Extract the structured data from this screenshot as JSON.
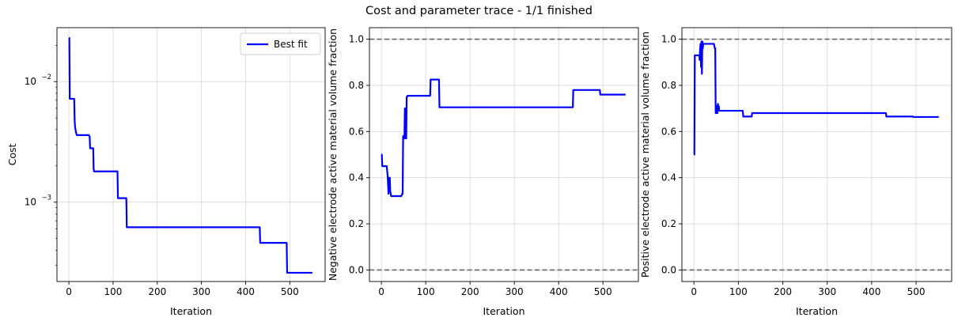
{
  "suptitle": "Cost and parameter trace - 1/1 finished",
  "chart_data": [
    {
      "type": "line",
      "xlabel": "Iteration",
      "ylabel": "Cost",
      "yscale": "log",
      "xlim": [
        -27,
        580
      ],
      "ylim": [
        0.00022,
        0.028
      ],
      "xticks": [
        0,
        100,
        200,
        300,
        400,
        500
      ],
      "yticks": [
        {
          "value": 0.001,
          "label": "10",
          "exp": "−3"
        },
        {
          "value": 0.01,
          "label": "10",
          "exp": "−2"
        }
      ],
      "grid": true,
      "legend": "top-right",
      "series": [
        {
          "name": "Best fit",
          "color": "#0000ff",
          "x": [
            0,
            1,
            2,
            12,
            13,
            14,
            15,
            16,
            18,
            20,
            22,
            45,
            47,
            48,
            55,
            56,
            57,
            58,
            110,
            111,
            130,
            131,
            432,
            433,
            493,
            494,
            551
          ],
          "y": [
            0.023,
            0.023,
            0.0072,
            0.0072,
            0.0048,
            0.0042,
            0.004,
            0.0038,
            0.0036,
            0.0036,
            0.0036,
            0.0036,
            0.0035,
            0.0028,
            0.0028,
            0.0019,
            0.0018,
            0.0018,
            0.0018,
            0.00108,
            0.00108,
            0.00062,
            0.00062,
            0.00046,
            0.00046,
            0.00026,
            0.00026
          ]
        }
      ]
    },
    {
      "type": "line",
      "xlabel": "Iteration",
      "ylabel": "Negative electrode active material volume fraction",
      "xlim": [
        -27,
        580
      ],
      "ylim": [
        -0.05,
        1.05
      ],
      "xticks": [
        0,
        100,
        200,
        300,
        400,
        500
      ],
      "yticks": [
        0.0,
        0.2,
        0.4,
        0.6,
        0.8,
        1.0
      ],
      "ytick_labels": [
        "0.0",
        "0.2",
        "0.4",
        "0.6",
        "0.8",
        "1.0"
      ],
      "grid": true,
      "hlines": [
        0,
        1
      ],
      "hline_color": "#666666",
      "series": [
        {
          "color": "#0000ff",
          "x": [
            0,
            1,
            2,
            12,
            13,
            14,
            16,
            17,
            18,
            19,
            20,
            21,
            22,
            23,
            45,
            47,
            48,
            49,
            51,
            52,
            53,
            54,
            55,
            56,
            57,
            58,
            59,
            110,
            111,
            130,
            131,
            432,
            433,
            493,
            494,
            551
          ],
          "y": [
            0.5,
            0.5,
            0.45,
            0.45,
            0.43,
            0.41,
            0.33,
            0.4,
            0.36,
            0.4,
            0.34,
            0.33,
            0.32,
            0.32,
            0.32,
            0.33,
            0.33,
            0.58,
            0.58,
            0.57,
            0.7,
            0.57,
            0.7,
            0.57,
            0.75,
            0.75,
            0.755,
            0.755,
            0.825,
            0.825,
            0.705,
            0.705,
            0.78,
            0.78,
            0.76,
            0.76
          ]
        }
      ]
    },
    {
      "type": "line",
      "xlabel": "Iteration",
      "ylabel": "Positive electrode active material volume fraction",
      "xlim": [
        -27,
        580
      ],
      "ylim": [
        -0.05,
        1.05
      ],
      "xticks": [
        0,
        100,
        200,
        300,
        400,
        500
      ],
      "yticks": [
        0.0,
        0.2,
        0.4,
        0.6,
        0.8,
        1.0
      ],
      "ytick_labels": [
        "0.0",
        "0.2",
        "0.4",
        "0.6",
        "0.8",
        "1.0"
      ],
      "grid": true,
      "hlines": [
        0,
        1
      ],
      "hline_color": "#666666",
      "series": [
        {
          "color": "#0000ff",
          "x": [
            0,
            1,
            2,
            12,
            13,
            14,
            15,
            16,
            17,
            18,
            19,
            20,
            21,
            22,
            23,
            45,
            47,
            48,
            49,
            51,
            52,
            53,
            54,
            55,
            56,
            57,
            58,
            59,
            110,
            111,
            130,
            131,
            432,
            433,
            493,
            494,
            551
          ],
          "y": [
            0.5,
            0.5,
            0.93,
            0.93,
            0.91,
            0.96,
            0.98,
            0.88,
            0.99,
            0.85,
            0.99,
            0.96,
            0.98,
            0.98,
            0.98,
            0.98,
            0.96,
            0.96,
            0.68,
            0.68,
            0.71,
            0.68,
            0.72,
            0.7,
            0.71,
            0.69,
            0.69,
            0.69,
            0.69,
            0.665,
            0.665,
            0.68,
            0.68,
            0.665,
            0.665,
            0.663,
            0.663
          ]
        }
      ]
    }
  ]
}
